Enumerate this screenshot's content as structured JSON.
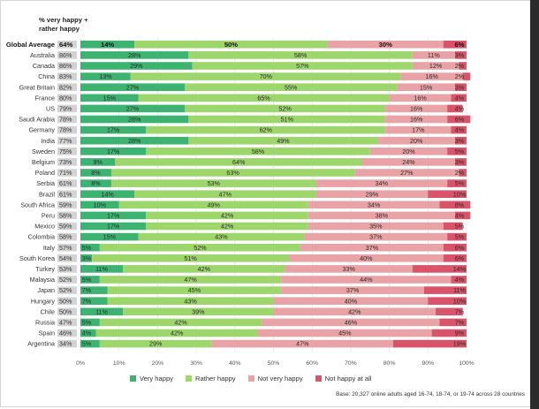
{
  "chart_data": {
    "type": "bar",
    "orientation": "horizontal",
    "stacked": true,
    "header_line1": "% very happy +",
    "header_line2": "rather happy",
    "categories": [
      "Global Average",
      "Australia",
      "Canada",
      "China",
      "Great Britain",
      "France",
      "US",
      "Saudi Arabia",
      "Germany",
      "India",
      "Sweden",
      "Belgium",
      "Poland",
      "Serbia",
      "Brazil",
      "South Africa",
      "Peru",
      "Mexico",
      "Colombia",
      "Italy",
      "South Korea",
      "Turkey",
      "Malaysia",
      "Japan",
      "Hungary",
      "Chile",
      "Russia",
      "Spain",
      "Argentina"
    ],
    "happy_total": [
      "64%",
      "86%",
      "86%",
      "83%",
      "82%",
      "80%",
      "79%",
      "78%",
      "78%",
      "77%",
      "75%",
      "73%",
      "71%",
      "61%",
      "61%",
      "59%",
      "58%",
      "59%",
      "58%",
      "57%",
      "54%",
      "53%",
      "52%",
      "52%",
      "50%",
      "50%",
      "47%",
      "46%",
      "34%"
    ],
    "series": [
      {
        "name": "Very happy",
        "color": "#3cb371",
        "values": [
          14,
          28,
          29,
          13,
          27,
          15,
          27,
          28,
          17,
          28,
          17,
          9,
          8,
          8,
          14,
          10,
          17,
          17,
          15,
          5,
          3,
          11,
          5,
          7,
          7,
          11,
          5,
          4,
          5
        ]
      },
      {
        "name": "Rather happy",
        "color": "#9dd66b",
        "values": [
          50,
          58,
          57,
          70,
          55,
          65,
          52,
          51,
          62,
          49,
          58,
          64,
          63,
          53,
          47,
          49,
          42,
          42,
          43,
          52,
          51,
          42,
          47,
          45,
          43,
          39,
          42,
          42,
          29
        ]
      },
      {
        "name": "Not very happy",
        "color": "#e9a3a6",
        "values": [
          30,
          11,
          12,
          16,
          15,
          16,
          16,
          16,
          17,
          20,
          20,
          24,
          27,
          34,
          29,
          34,
          38,
          35,
          37,
          37,
          40,
          33,
          44,
          37,
          40,
          42,
          46,
          45,
          47
        ]
      },
      {
        "name": "Not happy at all",
        "color": "#d9546a",
        "values": [
          6,
          3,
          2,
          2,
          3,
          4,
          4,
          6,
          4,
          3,
          5,
          3,
          2,
          5,
          10,
          8,
          4,
          5,
          5,
          6,
          6,
          14,
          4,
          11,
          10,
          7,
          7,
          9,
          19
        ]
      }
    ],
    "xlim": [
      0,
      100
    ],
    "xticks": [
      "0%",
      "10%",
      "20%",
      "30%",
      "40%",
      "50%",
      "60%",
      "70%",
      "80%",
      "90%",
      "100%"
    ],
    "grid": true,
    "legend_position": "bottom",
    "note": "Base: 20,327 online adults aged 16-74, 18-74, or 19-74 across 28 countries"
  }
}
